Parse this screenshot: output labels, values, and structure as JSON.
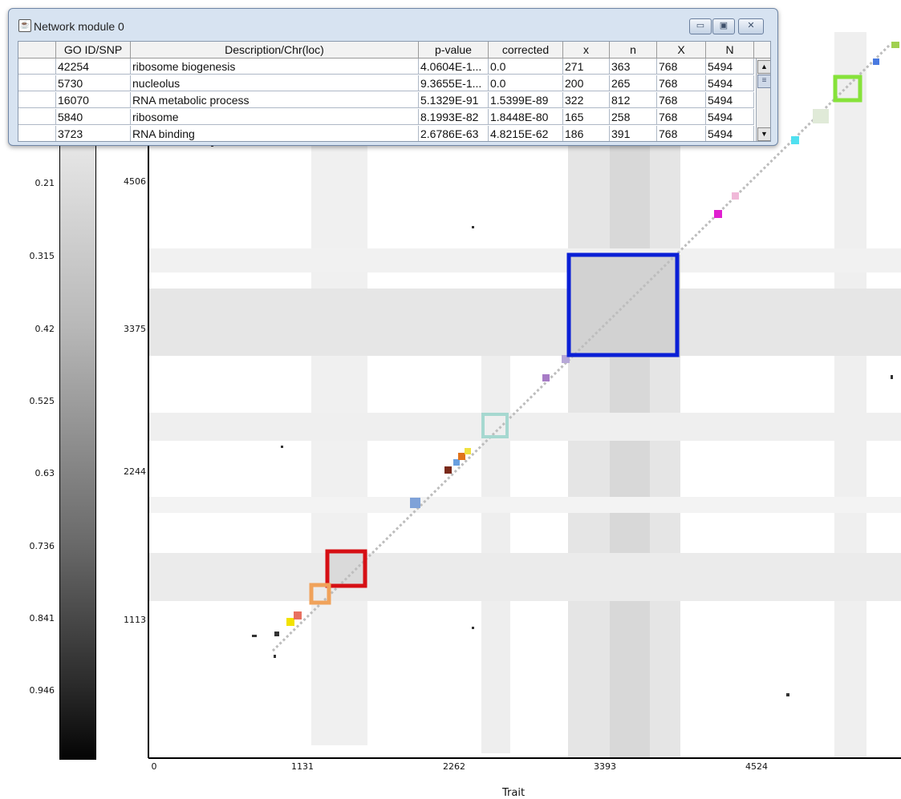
{
  "window": {
    "title": "Network module 0",
    "icon": "java-cup-icon",
    "buttons": {
      "minimize": "▭",
      "maximize": "▣",
      "close": "✕"
    }
  },
  "table": {
    "headers": [
      "",
      "GO ID/SNP",
      "Description/Chr(loc)",
      "p-value",
      "corrected",
      "x",
      "n",
      "X",
      "N"
    ],
    "rows": [
      [
        "",
        "42254",
        "ribosome biogenesis",
        "4.0604E-1...",
        "0.0",
        "271",
        "363",
        "768",
        "5494"
      ],
      [
        "",
        "5730",
        "nucleolus",
        "9.3655E-1...",
        "0.0",
        "200",
        "265",
        "768",
        "5494"
      ],
      [
        "",
        "16070",
        "RNA metabolic process",
        "5.1329E-91",
        "1.5399E-89",
        "322",
        "812",
        "768",
        "5494"
      ],
      [
        "",
        "5840",
        "ribosome",
        "8.1993E-82",
        "1.8448E-80",
        "165",
        "258",
        "768",
        "5494"
      ],
      [
        "",
        "3723",
        "RNA binding",
        "2.6786E-63",
        "4.8215E-62",
        "186",
        "391",
        "768",
        "5494"
      ]
    ]
  },
  "colorbar": {
    "labels": [
      "0.21",
      "0.315",
      "0.42",
      "0.525",
      "0.63",
      "0.736",
      "0.841",
      "0.946"
    ]
  },
  "axes": {
    "x_ticks": [
      "0",
      "1131",
      "2262",
      "3393",
      "4524"
    ],
    "y_ticks": [
      "4506",
      "3375",
      "2244",
      "1113"
    ],
    "x_title": "Trait"
  },
  "module_boxes": [
    {
      "name": "blue-module-box",
      "color": "#0a1fd6"
    },
    {
      "name": "red-module-box",
      "color": "#d60f14"
    },
    {
      "name": "orange-module-box",
      "color": "#f0a25a"
    },
    {
      "name": "teal-module-box",
      "color": "#a6d8d0"
    },
    {
      "name": "green-module-box",
      "color": "#86e23a"
    }
  ]
}
